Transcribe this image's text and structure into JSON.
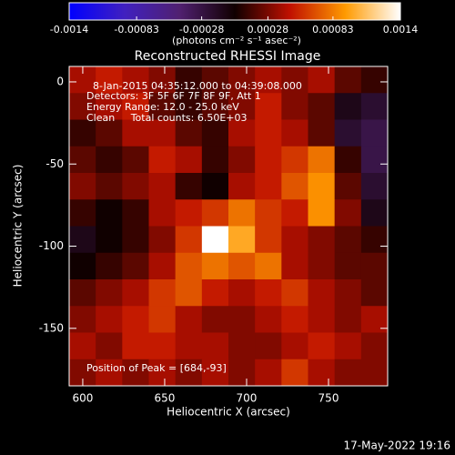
{
  "chart_data": {
    "type": "heatmap",
    "title": "Reconstructed RHESSI Image",
    "x_label": "Heliocentric X (arcsec)",
    "y_label": "Heliocentric Y (arcsec)",
    "colorbar_label": "(photons cm⁻² s⁻¹ asec⁻²)",
    "annotations": [
      "8-Jan-2015 04:35:12.000 to 04:39:08.000",
      "Detectors: 3F 5F 6F 7F 8F 9F, Att 1",
      "Energy Range: 12.0 - 25.0 keV",
      "Clean     Total counts: 6.50E+03"
    ],
    "peak_label": "Position of Peak = [684,-93]",
    "timestamp": "17-May-2022 19:16",
    "xlim": [
      591.7,
      786.1
    ],
    "ylim": [
      -185,
      9.4
    ],
    "xticks": [
      600,
      650,
      700,
      750
    ],
    "yticks": [
      0,
      -50,
      -100,
      -150
    ],
    "clim": [
      -0.0014,
      0.0014
    ],
    "cticks": [
      -0.0014,
      -0.00083,
      -0.00028,
      0.00028,
      0.00083,
      0.0014
    ],
    "colorscale": [
      "#0000ff",
      "#4020c0",
      "#502070",
      "#100000",
      "#c01000",
      "#ff9a00",
      "#ffffff"
    ],
    "z": [
      [
        0.0004,
        0.0005,
        0.0004,
        0.0003,
        0.0001,
        0.0002,
        0.0003,
        0.0004,
        0.0003,
        0.0004,
        0.0002,
        0.0001
      ],
      [
        0.0003,
        0.0004,
        0.0005,
        0.0002,
        0.0001,
        0.0002,
        0.0003,
        0.0005,
        0.0003,
        0.0002,
        -0.0001,
        -0.0002
      ],
      [
        0.0001,
        0.0002,
        0.0004,
        0.0004,
        0.0002,
        0.0001,
        0.0004,
        0.0005,
        0.0004,
        0.0002,
        -0.0002,
        -0.0003
      ],
      [
        0.0002,
        0.0001,
        0.0002,
        0.0005,
        0.0004,
        0.0001,
        0.0003,
        0.0005,
        0.0006,
        0.0008,
        0.0001,
        -0.0003
      ],
      [
        0.0003,
        0.0002,
        0.0003,
        0.0004,
        0.0001,
        0.0,
        0.0004,
        0.0005,
        0.0007,
        0.0009,
        0.0002,
        -0.0002
      ],
      [
        0.0001,
        0.0,
        0.0001,
        0.0004,
        0.0005,
        0.0006,
        0.0008,
        0.0006,
        0.0005,
        0.0009,
        0.0003,
        -0.0001
      ],
      [
        -0.0001,
        0.0,
        0.0001,
        0.0003,
        0.0006,
        0.0014,
        0.001,
        0.0006,
        0.0004,
        0.0003,
        0.0002,
        0.0001
      ],
      [
        0.0,
        0.0001,
        0.0002,
        0.0004,
        0.0007,
        0.0008,
        0.0007,
        0.0008,
        0.0004,
        0.0003,
        0.0002,
        0.0002
      ],
      [
        0.0002,
        0.0003,
        0.0004,
        0.0006,
        0.0007,
        0.0005,
        0.0004,
        0.0005,
        0.0006,
        0.0004,
        0.0003,
        0.0002
      ],
      [
        0.0003,
        0.0004,
        0.0005,
        0.0006,
        0.0004,
        0.0003,
        0.0003,
        0.0004,
        0.0005,
        0.0004,
        0.0003,
        0.0004
      ],
      [
        0.0004,
        0.0003,
        0.0005,
        0.0005,
        0.0004,
        0.0004,
        0.0003,
        0.0003,
        0.0004,
        0.0005,
        0.0004,
        0.0003
      ],
      [
        0.0003,
        0.0004,
        0.0003,
        0.0004,
        0.0003,
        0.0004,
        0.0003,
        0.0004,
        0.0006,
        0.0004,
        0.0003,
        0.0003
      ]
    ]
  }
}
